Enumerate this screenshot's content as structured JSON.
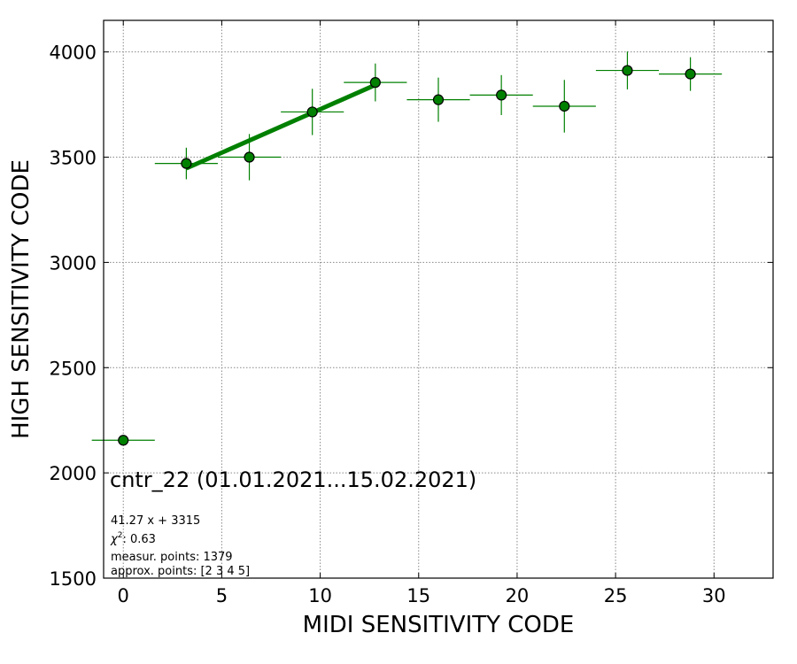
{
  "chart_data": {
    "type": "scatter",
    "xlabel": "MIDI SENSITIVITY CODE",
    "ylabel": "HIGH SENSITIVITY CODE",
    "xlim": [
      -1,
      33
    ],
    "ylim": [
      1500,
      4150
    ],
    "xticks": [
      0,
      5,
      10,
      15,
      20,
      25,
      30
    ],
    "yticks": [
      1500,
      2000,
      2500,
      3000,
      3500,
      4000
    ],
    "grid": true,
    "colors": {
      "points": "#008000",
      "fit_line": "#008000",
      "errorbars": "#008000"
    },
    "points": [
      {
        "x": 0.0,
        "y": 2155,
        "xerr": 1.6,
        "yerr": 0
      },
      {
        "x": 3.2,
        "y": 3470,
        "xerr": 1.6,
        "yerr": 75
      },
      {
        "x": 6.4,
        "y": 3500,
        "xerr": 1.6,
        "yerr": 110
      },
      {
        "x": 9.6,
        "y": 3715,
        "xerr": 1.6,
        "yerr": 110
      },
      {
        "x": 12.8,
        "y": 3855,
        "xerr": 1.6,
        "yerr": 90
      },
      {
        "x": 16.0,
        "y": 3773,
        "xerr": 1.6,
        "yerr": 105
      },
      {
        "x": 19.2,
        "y": 3795,
        "xerr": 1.6,
        "yerr": 95
      },
      {
        "x": 22.4,
        "y": 3742,
        "xerr": 1.6,
        "yerr": 125
      },
      {
        "x": 25.6,
        "y": 3912,
        "xerr": 1.6,
        "yerr": 90
      },
      {
        "x": 28.8,
        "y": 3895,
        "xerr": 1.6,
        "yerr": 80
      }
    ],
    "fit": {
      "slope": 41.27,
      "intercept": 3315,
      "x_range": [
        3.2,
        12.8
      ]
    },
    "annotations": {
      "title_line": "cntr_22 (01.01.2021...15.02.2021)",
      "fit_equation": "41.27 x + 3315",
      "chi_symbol": "χ",
      "chi_power": "2",
      "chi_value": ": 0.63",
      "measur_points": "measur. points: 1379",
      "approx_points": "approx. points: [2 3 4 5]"
    }
  }
}
